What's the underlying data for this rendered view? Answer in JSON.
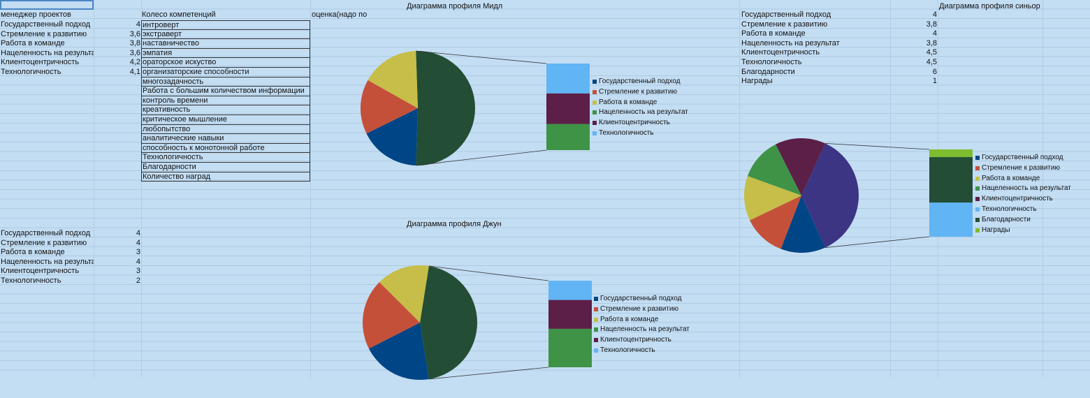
{
  "sheet": {
    "header_a": "менеджер проектов",
    "header_wheel": "Колесо компетенций",
    "header_score": "оценка(надо по",
    "mid_table": [
      {
        "label": "Государственный подход",
        "value": "4"
      },
      {
        "label": "Стремление к развитию",
        "value": "3,6"
      },
      {
        "label": "Работа в команде",
        "value": "3,8"
      },
      {
        "label": "Нацеленность на результат",
        "value": "3,6"
      },
      {
        "label": "Клиентоцентричность",
        "value": "4,2"
      },
      {
        "label": "Технологичность",
        "value": "4,1"
      }
    ],
    "wheel_items": [
      "интроверт",
      "экстраверт",
      "наставничество",
      "эмпатия",
      "ораторское искуство",
      "организаторские способности",
      "многозадачность",
      "Работа с большим количеством информации",
      "контроль времени",
      "креативность",
      "критическое мышление",
      "любопытство",
      "аналитические навыки",
      "способность к монотонной работе",
      "Технологичность",
      "Благодарности",
      "Количество наград"
    ],
    "junior_table": [
      {
        "label": "Государственный подход",
        "value": "4"
      },
      {
        "label": "Стремление к развитию",
        "value": "4"
      },
      {
        "label": "Работа в команде",
        "value": "3"
      },
      {
        "label": "Нацеленность на результат",
        "value": "4"
      },
      {
        "label": "Клиентоцентричность",
        "value": "3"
      },
      {
        "label": "Технологичность",
        "value": "2"
      }
    ],
    "senior_table": [
      {
        "label": "Государственный подход",
        "value": "4"
      },
      {
        "label": "Стремление к развитию",
        "value": "3,8"
      },
      {
        "label": "Работа в команде",
        "value": "4"
      },
      {
        "label": "Нацеленность на результат",
        "value": "3,8"
      },
      {
        "label": "Клиентоцентричность",
        "value": "4,5"
      },
      {
        "label": "Технологичность",
        "value": "4,5"
      },
      {
        "label": "Благодарности",
        "value": "6"
      },
      {
        "label": "Награды",
        "value": "1"
      }
    ]
  },
  "colors": {
    "gov": "#004586",
    "dev": "#c5503a",
    "team": "#c6be48",
    "result": "#3f9347",
    "client": "#5c1f47",
    "tech": "#61b5f4",
    "thanks": "#234e35",
    "awards": "#7ebd2f",
    "bigslice_mid": "#234e35",
    "bigslice_senior": "#3c3584"
  },
  "chart_data": [
    {
      "type": "pie",
      "title": "Диаграмма профиля Мидл",
      "categories": [
        "Государственный подход",
        "Стремление к развитию",
        "Работа в команде",
        "Нацеленность на результат",
        "Клиентоцентричность",
        "Технологичность"
      ],
      "values": [
        4,
        3.6,
        3.8,
        3.6,
        4.2,
        4.1
      ]
    },
    {
      "type": "pie",
      "title": "Диаграмма профиля Джун",
      "categories": [
        "Государственный подход",
        "Стремление к развитию",
        "Работа в команде",
        "Нацеленность на результат",
        "Клиентоцентричность",
        "Технологичность"
      ],
      "values": [
        4,
        4,
        3,
        4,
        3,
        2
      ]
    },
    {
      "type": "pie",
      "title": "Диаграмма профиля синьор",
      "categories": [
        "Государственный подход",
        "Стремление к развитию",
        "Работа в команде",
        "Нацеленность на результат",
        "Клиентоцентричность",
        "Технологичность",
        "Благодарности",
        "Награды"
      ],
      "values": [
        4,
        3.8,
        4,
        3.8,
        4.5,
        4.5,
        6,
        1
      ]
    }
  ]
}
